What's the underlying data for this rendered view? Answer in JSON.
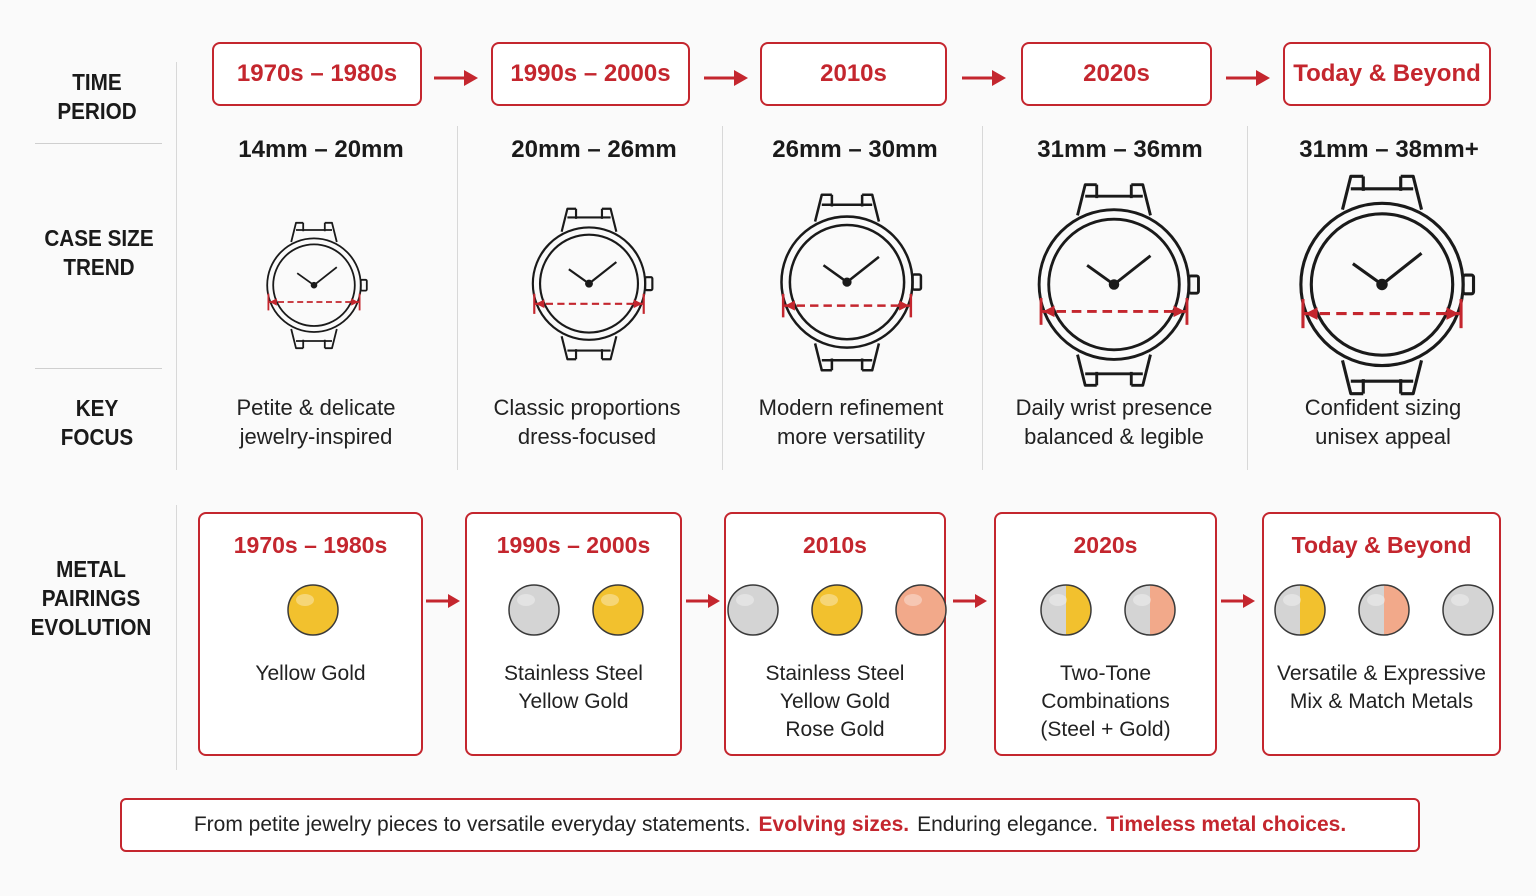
{
  "row_labels": {
    "time_period": [
      "TIME",
      "PERIOD"
    ],
    "case_size": [
      "CASE SIZE",
      "TREND"
    ],
    "key_focus": [
      "KEY",
      "FOCUS"
    ],
    "metal_pairings": [
      "METAL",
      "PAIRINGS",
      "EVOLUTION"
    ]
  },
  "periods": [
    {
      "label": "1970s – 1980s",
      "size": "14mm – 20mm",
      "focus": [
        "Petite & delicate",
        "jewelry-inspired"
      ],
      "watch_scale": 0.62
    },
    {
      "label": "1990s – 2000s",
      "size": "20mm – 26mm",
      "focus": [
        "Classic proportions",
        "dress-focused"
      ],
      "watch_scale": 0.76
    },
    {
      "label": "2010s",
      "size": "26mm – 30mm",
      "focus": [
        "Modern refinement",
        "more versatility"
      ],
      "watch_scale": 0.88
    },
    {
      "label": "2020s",
      "size": "31mm – 36mm",
      "focus": [
        "Daily wrist presence",
        "balanced & legible"
      ],
      "watch_scale": 1.0
    },
    {
      "label": "Today & Beyond",
      "size": "31mm – 38mm+",
      "focus": [
        "Confident sizing",
        "unisex appeal"
      ],
      "watch_scale": 1.08
    }
  ],
  "metals": [
    {
      "title": "1970s – 1980s",
      "coins": [
        "gold"
      ],
      "text": [
        "Yellow Gold"
      ]
    },
    {
      "title": "1990s – 2000s",
      "coins": [
        "steel",
        "gold"
      ],
      "text": [
        "Stainless Steel",
        "Yellow Gold"
      ]
    },
    {
      "title": "2010s",
      "coins": [
        "steel",
        "gold",
        "rose"
      ],
      "text": [
        "Stainless Steel",
        "Yellow Gold",
        "Rose Gold"
      ]
    },
    {
      "title": "2020s",
      "coins": [
        "steel-gold",
        "steel-rose"
      ],
      "text": [
        "Two-Tone Combinations",
        "(Steel + Gold)"
      ]
    },
    {
      "title": "Today & Beyond",
      "coins": [
        "steel-gold",
        "steel-rose",
        "steel"
      ],
      "text": [
        "Versatile & Expressive",
        "Mix & Match Metals"
      ]
    }
  ],
  "footer": {
    "part1": "From petite jewelry pieces to versatile everyday statements.",
    "part2": "Evolving sizes.",
    "part3": "Enduring elegance.",
    "part4": "Timeless metal choices."
  },
  "colors": {
    "accent": "#c4262e",
    "gold": "#f2c12e",
    "steel": "#d4d4d4",
    "rose": "#f2a98a"
  }
}
